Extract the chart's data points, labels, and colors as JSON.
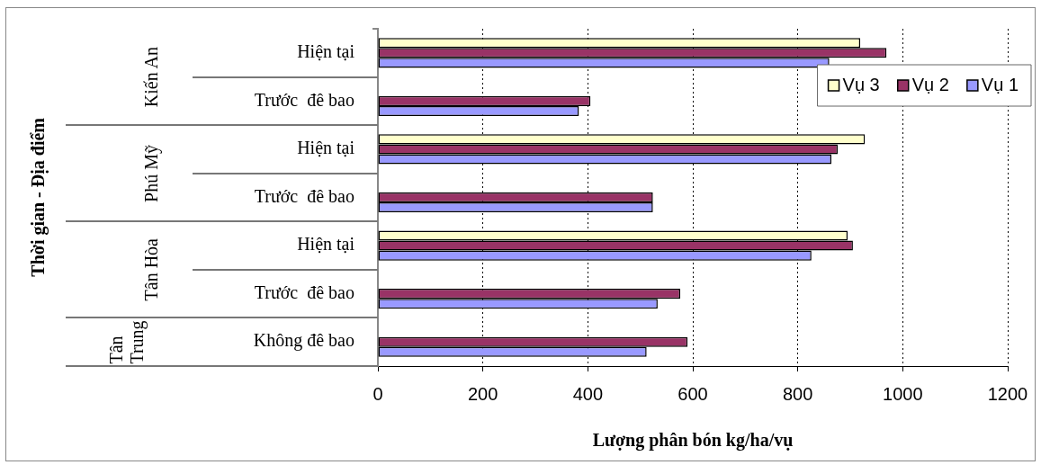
{
  "chart_data": {
    "type": "bar",
    "orientation": "horizontal",
    "xlabel": "Lượng phân bón kg/ha/vụ",
    "categories": [
      "Hiện tại",
      "Trước  đê bao",
      "Hiện tại",
      "Trước  đê bao",
      "Hiện tại",
      "Trước  đê bao",
      "Không đê bao"
    ],
    "annotations": [
      "Thời gian - Địa điểm",
      "Kiến An",
      "Phú Mỹ",
      "Tân Hòa",
      "Tân Trung"
    ],
    "series": [
      {
        "name": "Vụ 3",
        "color": "#ffffcc",
        "values": [
          919,
          null,
          928,
          null,
          895,
          null,
          null
        ]
      },
      {
        "name": "Vụ 2",
        "color": "#993366",
        "values": [
          969,
          405,
          876,
          524,
          905,
          576,
          590
        ]
      },
      {
        "name": "Vụ 1",
        "color": "#9999ff",
        "values": [
          860,
          383,
          864,
          524,
          826,
          533,
          512
        ]
      }
    ],
    "xlim": [
      0,
      1200
    ],
    "xticks": [
      0,
      200,
      400,
      600,
      800,
      1000,
      1200
    ],
    "grid": "x",
    "legend": "top right"
  }
}
